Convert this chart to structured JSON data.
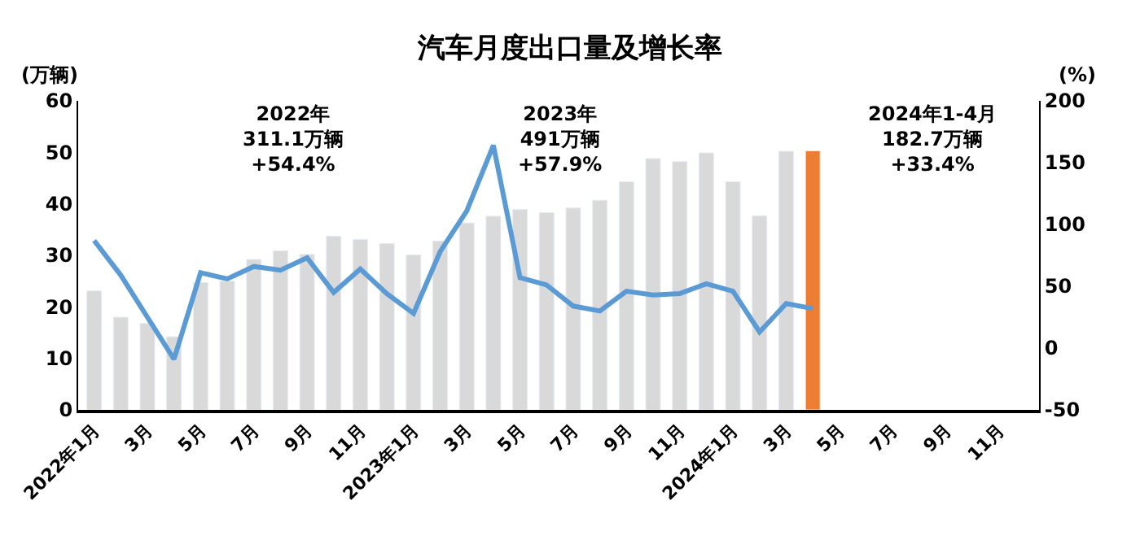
{
  "chart_data": {
    "type": "bar",
    "title": "汽车月度出口量及增长率",
    "ylabel": "(万辆)",
    "y2label": "(%)",
    "categories": [
      "2022年1月",
      null,
      "3月",
      null,
      "5月",
      null,
      "7月",
      null,
      "9月",
      null,
      "11月",
      null,
      "2023年1月",
      null,
      "3月",
      null,
      "5月",
      null,
      "7月",
      null,
      "9月",
      null,
      "11月",
      null,
      "2024年1月",
      null,
      "3月",
      null,
      "5月",
      null,
      "7月",
      null,
      "9月",
      null,
      "11月",
      null
    ],
    "series": [
      {
        "colors": [
          "#d9d9d9",
          "#d9d9d9",
          "#d9d9d9",
          "#d9d9d9",
          "#d9d9d9",
          "#d9d9d9",
          "#d9d9d9",
          "#d9d9d9",
          "#d9d9d9",
          "#d9d9d9",
          "#d9d9d9",
          "#d9d9d9",
          "#d9d9d9",
          "#d9d9d9",
          "#d9d9d9",
          "#d9d9d9",
          "#d9d9d9",
          "#d9d9d9",
          "#d9d9d9",
          "#d9d9d9",
          "#d9d9d9",
          "#d9d9d9",
          "#d9d9d9",
          "#d9d9d9",
          "#d9d9d9",
          "#d9d9d9",
          "#d9d9d9",
          "#ed7d31",
          null,
          null,
          null,
          null,
          null,
          null,
          null,
          null
        ],
        "values": [
          23.1,
          18.0,
          16.8,
          14.2,
          24.7,
          25.0,
          29.2,
          30.9,
          30.2,
          33.7,
          33.1,
          32.3,
          30.1,
          32.8,
          36.3,
          37.6,
          38.9,
          38.3,
          39.2,
          40.7,
          44.3,
          48.8,
          48.2,
          49.9,
          44.3,
          37.7,
          50.2,
          50.3,
          null,
          null,
          null,
          null,
          null,
          null,
          null,
          null
        ]
      },
      {
        "type": "line",
        "axis": "y2",
        "color": "#5b9bd5",
        "values": [
          87,
          59,
          25,
          -9,
          61,
          56,
          66,
          63,
          73,
          45,
          64,
          44,
          28,
          78,
          111,
          164,
          57,
          51,
          34,
          30,
          46,
          43,
          44,
          52,
          46,
          13,
          36,
          32,
          null,
          null,
          null,
          null,
          null,
          null,
          null,
          null
        ]
      }
    ],
    "ylim": [
      0,
      60
    ],
    "yticks": [
      0,
      10,
      20,
      30,
      40,
      50,
      60
    ],
    "y2lim": [
      -50,
      200
    ],
    "y2ticks": [
      -50,
      0,
      50,
      100,
      150,
      200
    ],
    "annotations": [
      "2022年\n311.1万辆\n+54.4%",
      "2023年\n491万辆\n+57.9%",
      "2024年1-4月\n182.7万辆\n+33.4%"
    ]
  }
}
